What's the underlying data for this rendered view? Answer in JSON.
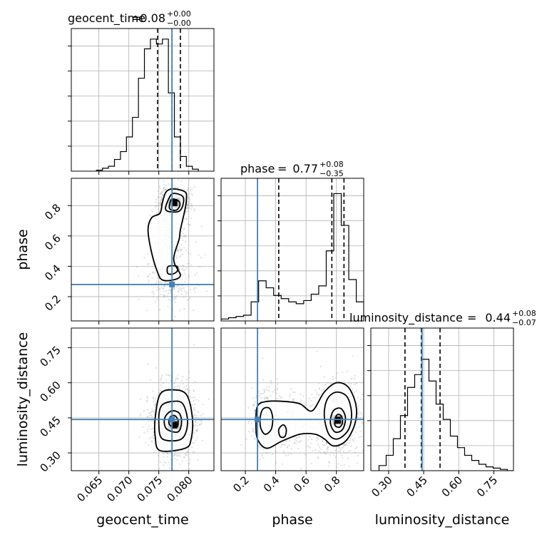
{
  "chart_data": {
    "type": "corner",
    "parameters": [
      "geocent_time",
      "phase",
      "luminosity_distance"
    ],
    "titles": {
      "geocent_time": {
        "name": "geocent_time",
        "median": "0.08",
        "plus": "+0.00",
        "minus": "−0.00"
      },
      "phase": {
        "name": "phase",
        "median": "0.77",
        "plus": "+0.08",
        "minus": "−0.35"
      },
      "luminosity_distance": {
        "name": "luminosity_distance",
        "median": "0.44",
        "plus": "+0.08",
        "minus": "−0.07"
      }
    },
    "axis_labels": {
      "x": [
        "geocent_time",
        "phase",
        "luminosity_distance"
      ],
      "y": [
        "phase",
        "luminosity_distance"
      ]
    },
    "ranges": {
      "geocent_time": [
        0.0604,
        0.0842
      ],
      "phase": [
        0.04,
        0.98
      ],
      "luminosity_distance": [
        0.224,
        0.834
      ]
    },
    "ticks": {
      "geocent_time": [
        "0.065",
        "0.070",
        "0.075",
        "0.080"
      ],
      "phase_row": [
        "0.2",
        "0.4",
        "0.6",
        "0.8"
      ],
      "phase_col": [
        "0.2",
        "0.4",
        "0.6",
        "0.8"
      ],
      "luminosity_distance": [
        "0.30",
        "0.45",
        "0.60",
        "0.75"
      ]
    },
    "truths": {
      "geocent_time": 0.0772,
      "phase": 0.28,
      "luminosity_distance": 0.443
    },
    "quantiles": {
      "geocent_time": [
        0.0748,
        0.0772,
        0.0786
      ],
      "phase": [
        0.42,
        0.77,
        0.85
      ],
      "luminosity_distance": [
        0.37,
        0.44,
        0.52
      ]
    },
    "hist_geocent_time": {
      "edges": [
        0.0646,
        0.0656,
        0.0666,
        0.0676,
        0.0686,
        0.0696,
        0.0706,
        0.0716,
        0.0726,
        0.0736,
        0.0746,
        0.0756,
        0.0766,
        0.0776,
        0.0786,
        0.0796,
        0.0806,
        0.0816
      ],
      "counts": [
        1,
        3,
        5,
        12,
        20,
        35,
        55,
        95,
        125,
        135,
        130,
        135,
        80,
        35,
        15,
        5,
        2
      ]
    },
    "hist_phase": {
      "edges": [
        0.04,
        0.0895,
        0.139,
        0.1885,
        0.238,
        0.2875,
        0.337,
        0.3865,
        0.436,
        0.4855,
        0.535,
        0.5845,
        0.634,
        0.6835,
        0.733,
        0.7825,
        0.832,
        0.8815,
        0.931,
        0.98
      ],
      "counts": [
        3,
        5,
        7,
        9,
        30,
        63,
        52,
        40,
        35,
        30,
        27,
        32,
        42,
        55,
        110,
        200,
        150,
        65,
        30
      ]
    },
    "hist_luminosity_distance": {
      "edges": [
        0.259,
        0.2895,
        0.32,
        0.3505,
        0.381,
        0.4115,
        0.442,
        0.4725,
        0.503,
        0.5335,
        0.564,
        0.5945,
        0.625,
        0.6555,
        0.686,
        0.7165,
        0.747,
        0.7775,
        0.808,
        0.8385
      ],
      "counts": [
        4,
        12,
        25,
        43,
        65,
        75,
        87,
        70,
        52,
        40,
        27,
        18,
        12,
        8,
        5,
        3,
        2,
        1,
        0
      ]
    },
    "contours_phase_vs_geocent_time": [
      {
        "level": "outer",
        "points": [
          [
            0.0786,
            0.64
          ],
          [
            0.0784,
            0.58
          ],
          [
            0.0776,
            0.48
          ],
          [
            0.0776,
            0.42
          ],
          [
            0.0786,
            0.34
          ],
          [
            0.0774,
            0.31
          ],
          [
            0.0756,
            0.31
          ],
          [
            0.0748,
            0.36
          ],
          [
            0.0738,
            0.49
          ],
          [
            0.0732,
            0.64
          ],
          [
            0.0738,
            0.72
          ],
          [
            0.0752,
            0.75
          ],
          [
            0.0756,
            0.82
          ],
          [
            0.0762,
            0.89
          ],
          [
            0.0774,
            0.91
          ],
          [
            0.0794,
            0.89
          ],
          [
            0.0796,
            0.84
          ],
          [
            0.0794,
            0.78
          ]
        ]
      },
      {
        "level": "middle",
        "points": [
          [
            0.0762,
            0.77
          ],
          [
            0.0766,
            0.84
          ],
          [
            0.0774,
            0.88
          ],
          [
            0.079,
            0.86
          ],
          [
            0.079,
            0.8
          ],
          [
            0.0782,
            0.76
          ]
        ]
      },
      {
        "level": "middle",
        "points": [
          [
            0.0764,
            0.37
          ],
          [
            0.0766,
            0.4
          ],
          [
            0.078,
            0.4
          ],
          [
            0.0781,
            0.37
          ],
          [
            0.0774,
            0.35
          ],
          [
            0.0766,
            0.35
          ]
        ]
      },
      {
        "level": "inner",
        "points": [
          [
            0.0768,
            0.78
          ],
          [
            0.0771,
            0.84
          ],
          [
            0.0783,
            0.83
          ],
          [
            0.0785,
            0.8
          ],
          [
            0.0779,
            0.77
          ]
        ]
      }
    ],
    "contours_luminosity_distance_vs_geocent_time": [
      {
        "level": "outer",
        "points": [
          [
            0.0752,
            0.31
          ],
          [
            0.0794,
            0.32
          ],
          [
            0.0804,
            0.36
          ],
          [
            0.0806,
            0.45
          ],
          [
            0.0796,
            0.55
          ],
          [
            0.0772,
            0.57
          ],
          [
            0.0752,
            0.55
          ],
          [
            0.0744,
            0.45
          ],
          [
            0.0744,
            0.37
          ]
        ]
      },
      {
        "level": "middle",
        "points": [
          [
            0.0756,
            0.36
          ],
          [
            0.0788,
            0.36
          ],
          [
            0.0798,
            0.43
          ],
          [
            0.079,
            0.51
          ],
          [
            0.0772,
            0.52
          ],
          [
            0.0754,
            0.5
          ],
          [
            0.075,
            0.43
          ]
        ]
      },
      {
        "level": "inner",
        "points": [
          [
            0.0764,
            0.4
          ],
          [
            0.0782,
            0.39
          ],
          [
            0.0788,
            0.43
          ],
          [
            0.0784,
            0.47
          ],
          [
            0.0772,
            0.48
          ],
          [
            0.0762,
            0.46
          ],
          [
            0.0759,
            0.43
          ]
        ]
      },
      {
        "level": "core",
        "points": [
          [
            0.0768,
            0.42
          ],
          [
            0.078,
            0.41
          ],
          [
            0.0782,
            0.44
          ],
          [
            0.0776,
            0.46
          ],
          [
            0.0768,
            0.45
          ]
        ]
      }
    ],
    "contours_luminosity_distance_vs_phase": [
      {
        "level": "outer",
        "points": [
          [
            0.28,
            0.5
          ],
          [
            0.34,
            0.52
          ],
          [
            0.46,
            0.52
          ],
          [
            0.56,
            0.51
          ],
          [
            0.64,
            0.48
          ],
          [
            0.72,
            0.56
          ],
          [
            0.8,
            0.6
          ],
          [
            0.88,
            0.58
          ],
          [
            0.93,
            0.5
          ],
          [
            0.92,
            0.42
          ],
          [
            0.86,
            0.35
          ],
          [
            0.78,
            0.33
          ],
          [
            0.72,
            0.36
          ],
          [
            0.66,
            0.38
          ],
          [
            0.56,
            0.38
          ],
          [
            0.44,
            0.35
          ],
          [
            0.34,
            0.32
          ],
          [
            0.28,
            0.36
          ],
          [
            0.27,
            0.43
          ]
        ]
      },
      {
        "level": "middle",
        "points": [
          [
            0.72,
            0.46
          ],
          [
            0.74,
            0.53
          ],
          [
            0.8,
            0.56
          ],
          [
            0.87,
            0.54
          ],
          [
            0.9,
            0.47
          ],
          [
            0.88,
            0.4
          ],
          [
            0.81,
            0.36
          ],
          [
            0.75,
            0.38
          ]
        ]
      },
      {
        "level": "middle",
        "points": [
          [
            0.3,
            0.46
          ],
          [
            0.32,
            0.49
          ],
          [
            0.36,
            0.49
          ],
          [
            0.38,
            0.45
          ],
          [
            0.37,
            0.4
          ],
          [
            0.33,
            0.38
          ],
          [
            0.3,
            0.41
          ]
        ]
      },
      {
        "level": "middle",
        "points": [
          [
            0.42,
            0.4
          ],
          [
            0.45,
            0.42
          ],
          [
            0.47,
            0.4
          ],
          [
            0.46,
            0.37
          ],
          [
            0.43,
            0.37
          ]
        ]
      },
      {
        "level": "inner",
        "points": [
          [
            0.76,
            0.43
          ],
          [
            0.78,
            0.48
          ],
          [
            0.83,
            0.49
          ],
          [
            0.86,
            0.45
          ],
          [
            0.84,
            0.4
          ],
          [
            0.79,
            0.39
          ]
        ]
      },
      {
        "level": "core",
        "points": [
          [
            0.79,
            0.42
          ],
          [
            0.8,
            0.46
          ],
          [
            0.83,
            0.46
          ],
          [
            0.84,
            0.43
          ],
          [
            0.82,
            0.41
          ]
        ]
      }
    ],
    "density_peaks": [
      {
        "panel": "phase_vs_geocent_time",
        "x": 0.0776,
        "y": 0.82
      },
      {
        "panel": "luminosity_distance_vs_geocent_time",
        "x": 0.0776,
        "y": 0.42
      },
      {
        "panel": "luminosity_distance_vs_phase",
        "x": 0.81,
        "y": 0.44
      }
    ],
    "colors": {
      "truth": "#4682b4",
      "hist": "#000000",
      "grid": "#b0b0b0",
      "quantile": "#000000",
      "samples": "#8c8c8c"
    },
    "grid": true,
    "legend": "none"
  }
}
